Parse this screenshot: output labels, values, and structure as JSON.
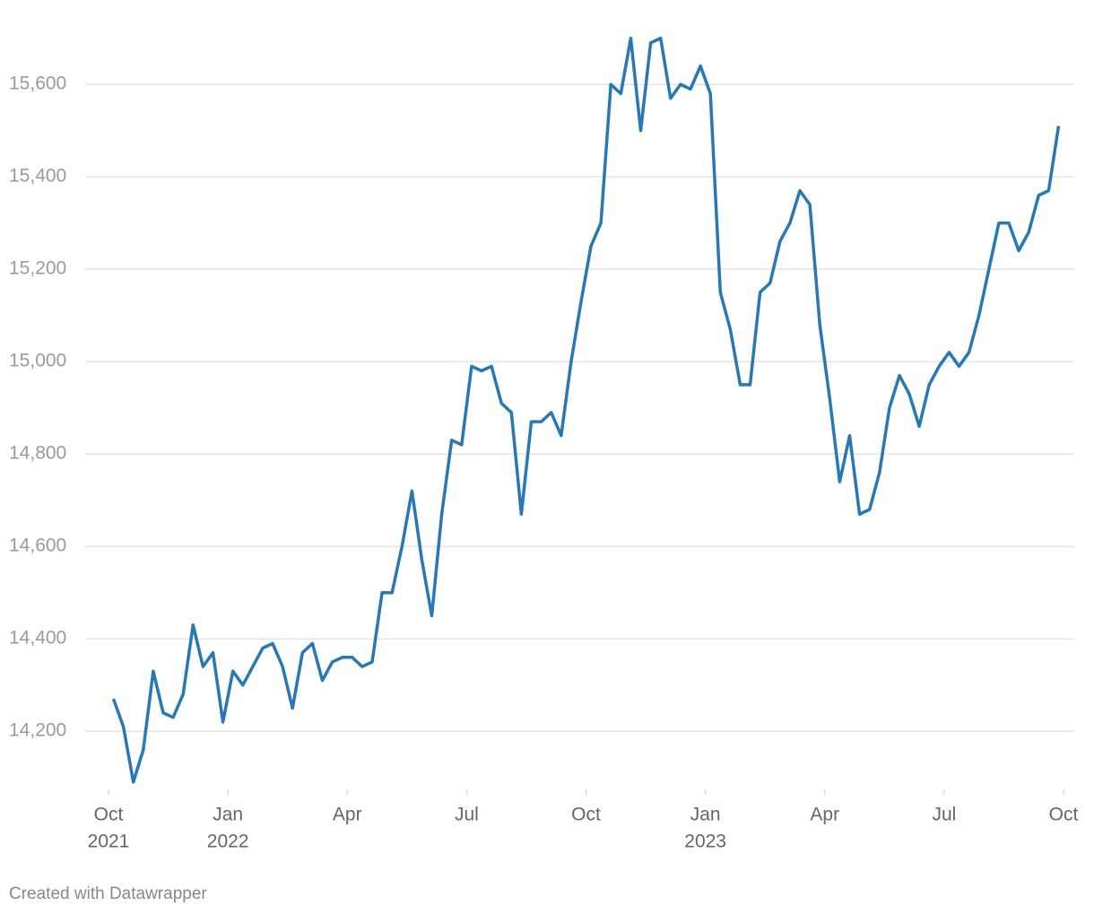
{
  "chart_data": {
    "type": "line",
    "footer": "Created with Datawrapper",
    "color": "#2878b5",
    "x": [
      "2021-10",
      "2021-10",
      "2021-10",
      "2021-10",
      "2021-11",
      "2021-11",
      "2021-11",
      "2021-11",
      "2021-12",
      "2021-12",
      "2021-12",
      "2021-12",
      "2022-01",
      "2022-01",
      "2022-01",
      "2022-01",
      "2022-02",
      "2022-02",
      "2022-02",
      "2022-02",
      "2022-03",
      "2022-03",
      "2022-03",
      "2022-03",
      "2022-04",
      "2022-04",
      "2022-04",
      "2022-04",
      "2022-05",
      "2022-05",
      "2022-05",
      "2022-05",
      "2022-06",
      "2022-06",
      "2022-06",
      "2022-06",
      "2022-07",
      "2022-07",
      "2022-07",
      "2022-07",
      "2022-08",
      "2022-08",
      "2022-08",
      "2022-08",
      "2022-09",
      "2022-09",
      "2022-09",
      "2022-09",
      "2022-10",
      "2022-10",
      "2022-10",
      "2022-10",
      "2022-11",
      "2022-11",
      "2022-11",
      "2022-11",
      "2022-12",
      "2022-12",
      "2022-12",
      "2022-12",
      "2023-01",
      "2023-01",
      "2023-01",
      "2023-01",
      "2023-02",
      "2023-02",
      "2023-02",
      "2023-02",
      "2023-03",
      "2023-03",
      "2023-03",
      "2023-03",
      "2023-04",
      "2023-04",
      "2023-04",
      "2023-04",
      "2023-05",
      "2023-05",
      "2023-05",
      "2023-05",
      "2023-06",
      "2023-06",
      "2023-06",
      "2023-06",
      "2023-07",
      "2023-07",
      "2023-07",
      "2023-07",
      "2023-08",
      "2023-08",
      "2023-08",
      "2023-08",
      "2023-09",
      "2023-09",
      "2023-09",
      "2023-09"
    ],
    "values": [
      14270,
      14210,
      14090,
      14160,
      14330,
      14240,
      14230,
      14280,
      14430,
      14340,
      14370,
      14220,
      14330,
      14300,
      14340,
      14380,
      14390,
      14340,
      14250,
      14370,
      14390,
      14310,
      14350,
      14360,
      14360,
      14340,
      14350,
      14500,
      14500,
      14600,
      14720,
      14570,
      14450,
      14670,
      14830,
      14820,
      14990,
      14980,
      14990,
      14910,
      14890,
      14670,
      14870,
      14870,
      14890,
      14840,
      15000,
      15130,
      15250,
      15300,
      15600,
      15580,
      15700,
      15500,
      15690,
      15700,
      15570,
      15600,
      15590,
      15640,
      15580,
      15150,
      15070,
      14950,
      14950,
      15150,
      15170,
      15260,
      15300,
      15370,
      15340,
      15080,
      14920,
      14740,
      14840,
      14670,
      14680,
      14760,
      14900,
      14970,
      14930,
      14860,
      14950,
      14990,
      15020,
      14990,
      15020,
      15100,
      15200,
      15300,
      15300,
      15240,
      15280,
      15360,
      15370,
      15510
    ],
    "xlim": [
      "2021-10",
      "2023-10"
    ],
    "xticks": [
      {
        "value": "2021-10",
        "label": "Oct",
        "year": "2021"
      },
      {
        "value": "2022-01",
        "label": "Jan",
        "year": "2022"
      },
      {
        "value": "2022-04",
        "label": "Apr"
      },
      {
        "value": "2022-07",
        "label": "Jul"
      },
      {
        "value": "2022-10",
        "label": "Oct"
      },
      {
        "value": "2023-01",
        "label": "Jan",
        "year": "2023"
      },
      {
        "value": "2023-04",
        "label": "Apr"
      },
      {
        "value": "2023-07",
        "label": "Jul"
      },
      {
        "value": "2023-10",
        "label": "Oct"
      }
    ],
    "ylim": [
      14080,
      15740
    ],
    "yticks": [
      {
        "value": 14200,
        "label": "14,200"
      },
      {
        "value": 14400,
        "label": "14,400"
      },
      {
        "value": 14600,
        "label": "14,600"
      },
      {
        "value": 14800,
        "label": "14,800"
      },
      {
        "value": 15000,
        "label": "15,000"
      },
      {
        "value": 15200,
        "label": "15,200"
      },
      {
        "value": 15400,
        "label": "15,400"
      },
      {
        "value": 15600,
        "label": "15,600"
      }
    ],
    "grid": true
  }
}
